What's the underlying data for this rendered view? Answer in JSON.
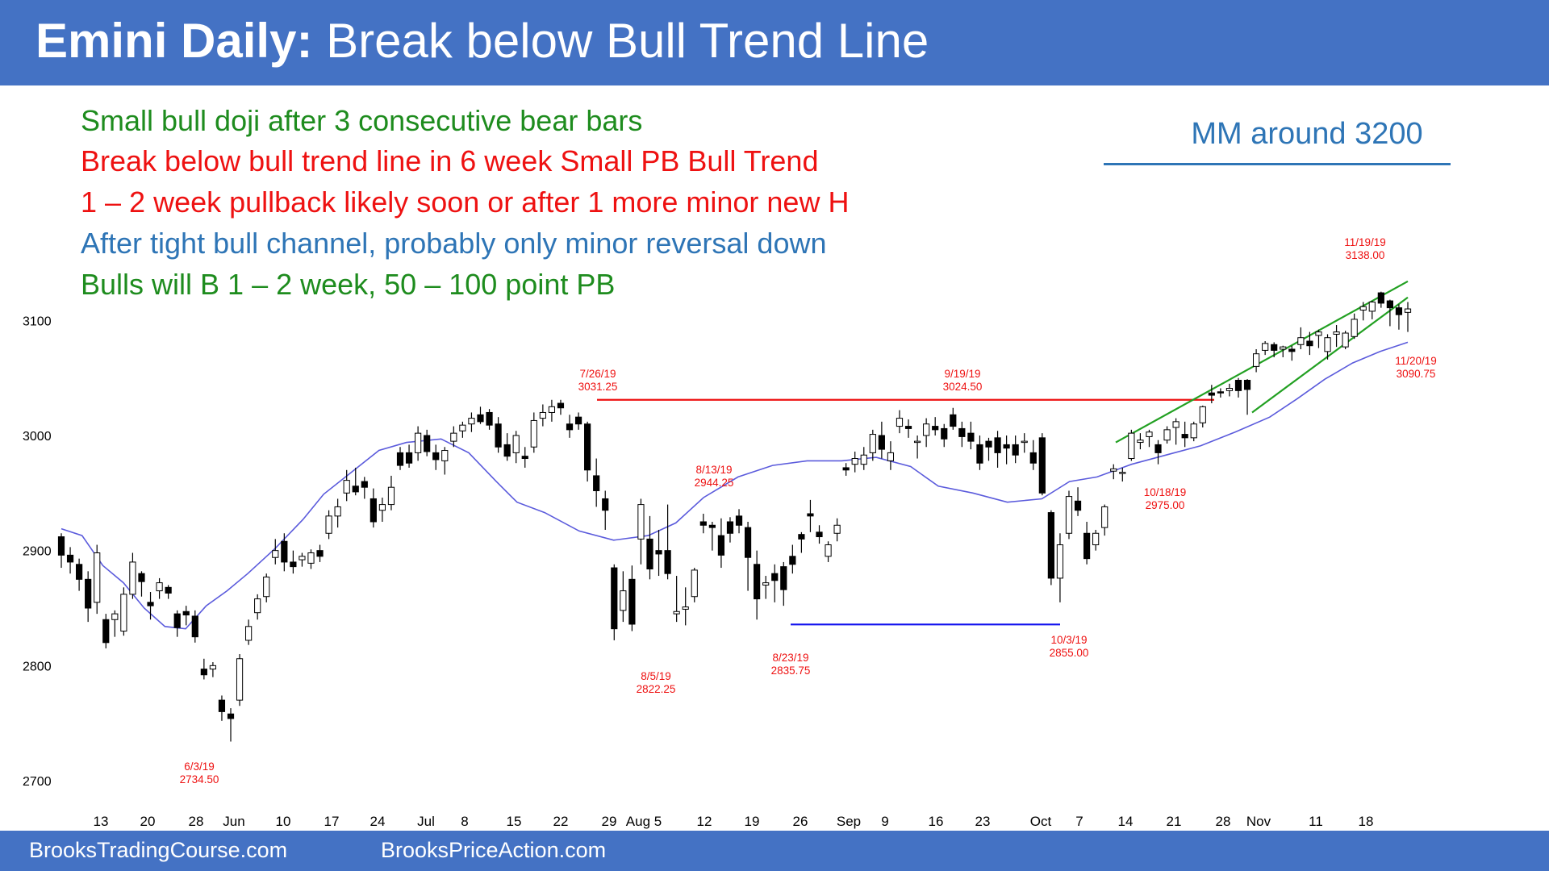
{
  "title": {
    "bold": "Emini Daily:",
    "rest": " Break below Bull Trend Line"
  },
  "annotations": [
    {
      "text": "Small bull doji after 3 consecutive bear bars",
      "color": "#1e8c1e"
    },
    {
      "text": "Break below bull trend line in 6 week Small PB Bull Trend",
      "color": "#ee1111"
    },
    {
      "text": "1 – 2 week pullback likely soon or after 1 more minor new H",
      "color": "#ee1111"
    },
    {
      "text": "After tight bull channel, probably only minor reversal down",
      "color": "#2e75b6"
    },
    {
      "text": "Bulls will B 1 – 2 week, 50 – 100 point PB",
      "color": "#1e8c1e"
    }
  ],
  "mm_note": "MM around 3200",
  "footer": {
    "left": "BrooksTradingCourse.com",
    "right": "BrooksPriceAction.com"
  },
  "colors": {
    "header": "#4472c4",
    "ma": "#5b5bdc",
    "resistance": "#ee1111",
    "support": "#1111ee",
    "channel": "#22a022",
    "label": "#ee1111"
  },
  "chart_data": {
    "type": "candlestick",
    "ylim": [
      2700,
      3150
    ],
    "y_ticks": [
      2700,
      2800,
      2900,
      3000,
      3100
    ],
    "x_ticks": [
      "13",
      "20",
      "28",
      "Jun",
      "10",
      "17",
      "24",
      "Jul",
      "8",
      "15",
      "22",
      "29",
      "Aug 5",
      "12",
      "19",
      "26",
      "Sep",
      "9",
      "16",
      "23",
      "Oct",
      "7",
      "14",
      "21",
      "28",
      "Nov",
      "11",
      "18"
    ],
    "candles": [
      [
        2912,
        2915,
        2885,
        2896
      ],
      [
        2896,
        2903,
        2880,
        2890
      ],
      [
        2888,
        2893,
        2865,
        2875
      ],
      [
        2875,
        2882,
        2838,
        2850
      ],
      [
        2855,
        2905,
        2845,
        2898
      ],
      [
        2840,
        2845,
        2815,
        2820
      ],
      [
        2840,
        2848,
        2825,
        2845
      ],
      [
        2830,
        2868,
        2826,
        2862
      ],
      [
        2862,
        2898,
        2858,
        2890
      ],
      [
        2880,
        2882,
        2860,
        2873
      ],
      [
        2855,
        2864,
        2840,
        2852
      ],
      [
        2865,
        2876,
        2858,
        2872
      ],
      [
        2868,
        2870,
        2858,
        2863
      ],
      [
        2845,
        2848,
        2825,
        2833
      ],
      [
        2847,
        2852,
        2835,
        2844
      ],
      [
        2843,
        2848,
        2820,
        2825
      ],
      [
        2797,
        2806,
        2788,
        2792
      ],
      [
        2797,
        2803,
        2790,
        2800
      ],
      [
        2770,
        2774,
        2752,
        2760
      ],
      [
        2758,
        2763,
        2734,
        2754
      ],
      [
        2770,
        2810,
        2765,
        2806
      ],
      [
        2822,
        2840,
        2818,
        2834
      ],
      [
        2846,
        2862,
        2840,
        2858
      ],
      [
        2860,
        2880,
        2855,
        2877
      ],
      [
        2894,
        2910,
        2888,
        2900
      ],
      [
        2908,
        2915,
        2882,
        2890
      ],
      [
        2890,
        2900,
        2880,
        2886
      ],
      [
        2892,
        2898,
        2886,
        2895
      ],
      [
        2889,
        2901,
        2884,
        2898
      ],
      [
        2900,
        2905,
        2890,
        2895
      ],
      [
        2915,
        2935,
        2910,
        2930
      ],
      [
        2930,
        2945,
        2920,
        2938
      ],
      [
        2950,
        2970,
        2943,
        2961
      ],
      [
        2956,
        2972,
        2948,
        2951
      ],
      [
        2960,
        2964,
        2945,
        2955
      ],
      [
        2945,
        2954,
        2920,
        2925
      ],
      [
        2935,
        2946,
        2925,
        2940
      ],
      [
        2940,
        2965,
        2935,
        2955
      ],
      [
        2985,
        2990,
        2970,
        2974
      ],
      [
        2985,
        2992,
        2972,
        2976
      ],
      [
        2985,
        3008,
        2978,
        3002
      ],
      [
        3000,
        3005,
        2982,
        2986
      ],
      [
        2985,
        2992,
        2970,
        2979
      ],
      [
        2978,
        2990,
        2966,
        2987
      ],
      [
        2995,
        3008,
        2990,
        3002
      ],
      [
        3004,
        3012,
        2998,
        3009
      ],
      [
        3010,
        3020,
        3003,
        3015
      ],
      [
        3018,
        3025,
        3010,
        3012
      ],
      [
        3020,
        3023,
        3005,
        3009
      ],
      [
        3010,
        3016,
        2985,
        2990
      ],
      [
        2992,
        3002,
        2978,
        2982
      ],
      [
        2985,
        3004,
        2976,
        3000
      ],
      [
        2982,
        2990,
        2972,
        2980
      ],
      [
        2990,
        3020,
        2985,
        3013
      ],
      [
        3015,
        3027,
        3008,
        3020
      ],
      [
        3020,
        3031,
        3012,
        3025
      ],
      [
        3028,
        3031,
        3018,
        3024
      ],
      [
        3010,
        3018,
        2998,
        3005
      ],
      [
        3016,
        3020,
        3005,
        3010
      ],
      [
        3010,
        3012,
        2960,
        2970
      ],
      [
        2965,
        2980,
        2938,
        2952
      ],
      [
        2945,
        2952,
        2918,
        2935
      ],
      [
        2885,
        2888,
        2822,
        2832
      ],
      [
        2848,
        2882,
        2838,
        2865
      ],
      [
        2875,
        2887,
        2830,
        2836
      ],
      [
        2910,
        2945,
        2888,
        2940
      ],
      [
        2910,
        2930,
        2875,
        2884
      ],
      [
        2900,
        2918,
        2878,
        2897
      ],
      [
        2900,
        2940,
        2875,
        2880
      ],
      [
        2845,
        2878,
        2838,
        2847
      ],
      [
        2849,
        2868,
        2835,
        2851
      ],
      [
        2860,
        2885,
        2855,
        2883
      ],
      [
        2925,
        2932,
        2915,
        2922
      ],
      [
        2922,
        2925,
        2900,
        2920
      ],
      [
        2913,
        2928,
        2885,
        2896
      ],
      [
        2925,
        2929,
        2907,
        2915
      ],
      [
        2930,
        2936,
        2915,
        2922
      ],
      [
        2920,
        2925,
        2865,
        2894
      ],
      [
        2888,
        2900,
        2840,
        2858
      ],
      [
        2870,
        2878,
        2858,
        2872
      ],
      [
        2880,
        2888,
        2855,
        2874
      ],
      [
        2886,
        2890,
        2852,
        2866
      ],
      [
        2895,
        2905,
        2880,
        2888
      ],
      [
        2914,
        2916,
        2898,
        2910
      ],
      [
        2932,
        2944,
        2916,
        2930
      ],
      [
        2916,
        2922,
        2906,
        2912
      ],
      [
        2895,
        2908,
        2890,
        2905
      ],
      [
        2915,
        2928,
        2908,
        2922
      ],
      [
        2972,
        2976,
        2965,
        2970
      ],
      [
        2975,
        2986,
        2968,
        2980
      ],
      [
        2975,
        2990,
        2970,
        2983
      ],
      [
        2985,
        3005,
        2978,
        3001
      ],
      [
        3000,
        3012,
        2980,
        2988
      ],
      [
        2978,
        2995,
        2970,
        2985
      ],
      [
        3008,
        3022,
        3002,
        3015
      ],
      [
        3008,
        3014,
        2998,
        3006
      ],
      [
        2994,
        3000,
        2980,
        2995
      ],
      [
        3000,
        3015,
        2990,
        3010
      ],
      [
        3008,
        3016,
        3000,
        3005
      ],
      [
        3006,
        3010,
        2990,
        2997
      ],
      [
        3018,
        3024,
        3005,
        3008
      ],
      [
        3006,
        3012,
        2990,
        2999
      ],
      [
        3002,
        3012,
        2988,
        2995
      ],
      [
        2992,
        3000,
        2970,
        2976
      ],
      [
        2995,
        2998,
        2978,
        2990
      ],
      [
        2998,
        3004,
        2972,
        2985
      ],
      [
        2992,
        3000,
        2975,
        2989
      ],
      [
        2992,
        3000,
        2976,
        2983
      ],
      [
        2995,
        3002,
        2985,
        2995
      ],
      [
        2985,
        2996,
        2970,
        2976
      ],
      [
        2998,
        3002,
        2948,
        2950
      ],
      [
        2933,
        2935,
        2870,
        2876
      ],
      [
        2876,
        2915,
        2855,
        2905
      ],
      [
        2915,
        2952,
        2910,
        2947
      ],
      [
        2943,
        2955,
        2930,
        2935
      ],
      [
        2915,
        2925,
        2888,
        2893
      ],
      [
        2905,
        2918,
        2900,
        2915
      ],
      [
        2920,
        2940,
        2913,
        2938
      ],
      [
        2969,
        2975,
        2962,
        2971
      ],
      [
        2968,
        2972,
        2960,
        2968
      ],
      [
        2980,
        3005,
        2978,
        3002
      ],
      [
        2994,
        3002,
        2988,
        2996
      ],
      [
        2999,
        3005,
        2990,
        3003
      ],
      [
        2992,
        2996,
        2975,
        2985
      ],
      [
        2996,
        3008,
        2993,
        3005
      ],
      [
        3007,
        3015,
        2992,
        3012
      ],
      [
        3001,
        3012,
        2990,
        2998
      ],
      [
        2998,
        3012,
        2995,
        3010
      ],
      [
        3011,
        3026,
        3007,
        3025
      ],
      [
        3037,
        3044,
        3028,
        3035
      ],
      [
        3038,
        3041,
        3033,
        3037
      ],
      [
        3039,
        3045,
        3034,
        3041
      ],
      [
        3048,
        3050,
        3033,
        3039
      ],
      [
        3048,
        3049,
        3018,
        3040
      ],
      [
        3060,
        3075,
        3055,
        3071
      ],
      [
        3074,
        3082,
        3070,
        3080
      ],
      [
        3079,
        3081,
        3068,
        3074
      ],
      [
        3075,
        3078,
        3068,
        3077
      ],
      [
        3075,
        3078,
        3065,
        3073
      ],
      [
        3079,
        3094,
        3075,
        3085
      ],
      [
        3082,
        3090,
        3070,
        3078
      ],
      [
        3087,
        3092,
        3076,
        3090
      ],
      [
        3073,
        3088,
        3066,
        3085
      ],
      [
        3088,
        3096,
        3077,
        3090
      ],
      [
        3077,
        3091,
        3075,
        3089
      ],
      [
        3086,
        3106,
        3084,
        3101
      ],
      [
        3109,
        3116,
        3100,
        3112
      ],
      [
        3108,
        3117,
        3101,
        3116
      ],
      [
        3124,
        3125,
        3111,
        3115
      ],
      [
        3117,
        3118,
        3095,
        3111
      ],
      [
        3111,
        3114,
        3092,
        3105
      ],
      [
        3107,
        3116,
        3090,
        3110
      ]
    ],
    "moving_average": [
      [
        0,
        2919
      ],
      [
        6,
        2913
      ],
      [
        12,
        2887
      ],
      [
        18,
        2872
      ],
      [
        24,
        2850
      ],
      [
        30,
        2834
      ],
      [
        36,
        2832
      ],
      [
        42,
        2852
      ],
      [
        48,
        2865
      ],
      [
        54,
        2880
      ],
      [
        62,
        2902
      ],
      [
        70,
        2927
      ],
      [
        76,
        2949
      ],
      [
        84,
        2968
      ],
      [
        92,
        2987
      ],
      [
        100,
        2994
      ],
      [
        110,
        2997
      ],
      [
        118,
        2985
      ],
      [
        126,
        2960
      ],
      [
        132,
        2942
      ],
      [
        140,
        2933
      ],
      [
        150,
        2917
      ],
      [
        160,
        2909
      ],
      [
        170,
        2913
      ],
      [
        178,
        2924
      ],
      [
        186,
        2946
      ],
      [
        196,
        2964
      ],
      [
        206,
        2974
      ],
      [
        216,
        2978
      ],
      [
        226,
        2978
      ],
      [
        236,
        2981
      ],
      [
        246,
        2973
      ],
      [
        254,
        2956
      ],
      [
        264,
        2950
      ],
      [
        274,
        2942
      ],
      [
        284,
        2945
      ],
      [
        292,
        2960
      ],
      [
        300,
        2964
      ],
      [
        310,
        2975
      ],
      [
        320,
        2983
      ],
      [
        330,
        2991
      ],
      [
        340,
        3003
      ],
      [
        350,
        3016
      ],
      [
        358,
        3032
      ],
      [
        366,
        3049
      ],
      [
        374,
        3063
      ],
      [
        382,
        3073
      ],
      [
        390,
        3081
      ]
    ],
    "ma_x_span": 390,
    "lines": [
      {
        "kind": "resistance",
        "from": [
          0,
          3031
        ],
        "to": [
          0,
          3031
        ]
      },
      {
        "kind": "support",
        "from": [
          0,
          2835.75
        ],
        "to": [
          0,
          2835.75
        ]
      },
      {
        "kind": "channel_top",
        "from": [
          0,
          2994
        ],
        "to": [
          0,
          3134
        ]
      },
      {
        "kind": "channel_bottom",
        "from": [
          0,
          3020
        ],
        "to": [
          0,
          3120
        ]
      }
    ],
    "labels": [
      {
        "date": "6/3/19",
        "price": "2734.50"
      },
      {
        "date": "7/26/19",
        "price": "3031.25"
      },
      {
        "date": "8/5/19",
        "price": "2822.25"
      },
      {
        "date": "8/13/19",
        "price": "2944.25"
      },
      {
        "date": "8/23/19",
        "price": "2835.75"
      },
      {
        "date": "9/19/19",
        "price": "3024.50"
      },
      {
        "date": "10/3/19",
        "price": "2855.00"
      },
      {
        "date": "10/18/19",
        "price": "2975.00"
      },
      {
        "date": "11/19/19",
        "price": "3138.00"
      },
      {
        "date": "11/20/19",
        "price": "3090.75"
      }
    ]
  }
}
